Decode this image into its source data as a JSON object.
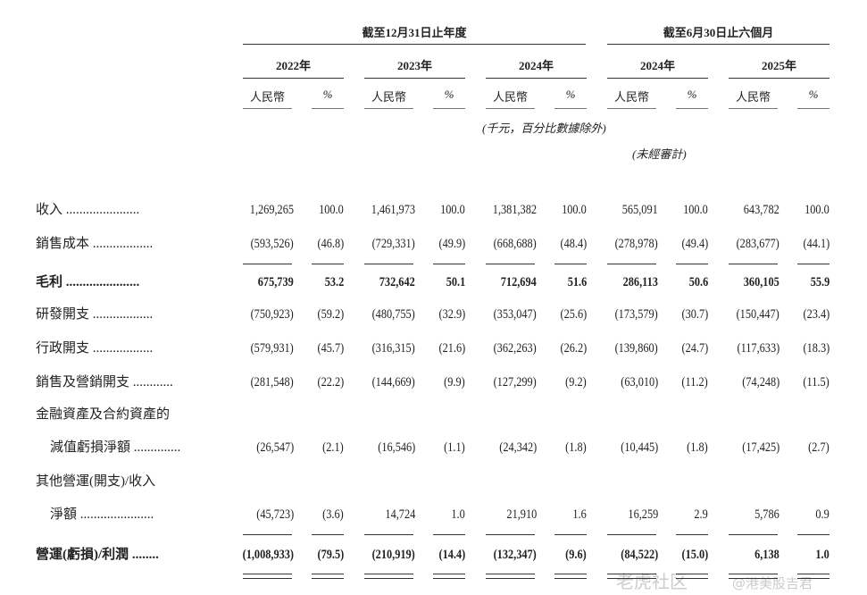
{
  "header": {
    "group_full_year": "截至12月31日止年度",
    "group_six_months": "截至6月30日止六個月",
    "years": [
      "2022年",
      "2023年",
      "2024年",
      "2024年",
      "2025年"
    ],
    "currency_label": "人民幣",
    "percent_label": "%",
    "unit_note": "(千元，百分比數據除外)",
    "unaudited_note": "(未經審計)"
  },
  "rows": [
    {
      "label": "收入",
      "values": [
        "1,269,265",
        "100.0",
        "1,461,973",
        "100.0",
        "1,381,382",
        "100.0",
        "565,091",
        "100.0",
        "643,782",
        "100.0"
      ]
    },
    {
      "label": "銷售成本",
      "values": [
        "(593,526)",
        "(46.8)",
        "(729,331)",
        "(49.9)",
        "(668,688)",
        "(48.4)",
        "(278,978)",
        "(49.4)",
        "(283,677)",
        "(44.1)"
      ],
      "underline": "single"
    },
    {
      "label": "毛利",
      "bold": true,
      "values": [
        "675,739",
        "53.2",
        "732,642",
        "50.1",
        "712,694",
        "51.6",
        "286,113",
        "50.6",
        "360,105",
        "55.9"
      ]
    },
    {
      "label": "研發開支",
      "values": [
        "(750,923)",
        "(59.2)",
        "(480,755)",
        "(32.9)",
        "(353,047)",
        "(25.6)",
        "(173,579)",
        "(30.7)",
        "(150,447)",
        "(23.4)"
      ]
    },
    {
      "label": "行政開支",
      "values": [
        "(579,931)",
        "(45.7)",
        "(316,315)",
        "(21.6)",
        "(362,263)",
        "(26.2)",
        "(139,860)",
        "(24.7)",
        "(117,633)",
        "(18.3)"
      ]
    },
    {
      "label": "銷售及營銷開支",
      "values": [
        "(281,548)",
        "(22.2)",
        "(144,669)",
        "(9.9)",
        "(127,299)",
        "(9.2)",
        "(63,010)",
        "(11.2)",
        "(74,248)",
        "(11.5)"
      ]
    },
    {
      "label": "金融資產及合約資產的",
      "values": []
    },
    {
      "label": "減值虧損淨額",
      "indent": true,
      "values": [
        "(26,547)",
        "(2.1)",
        "(16,546)",
        "(1.1)",
        "(24,342)",
        "(1.8)",
        "(10,445)",
        "(1.8)",
        "(17,425)",
        "(2.7)"
      ]
    },
    {
      "label": "其他營運(開支)/收入",
      "values": []
    },
    {
      "label": "淨額",
      "indent": true,
      "values": [
        "(45,723)",
        "(3.6)",
        "14,724",
        "1.0",
        "21,910",
        "1.6",
        "16,259",
        "2.9",
        "5,786",
        "0.9"
      ],
      "underline": "single"
    },
    {
      "label": "營運(虧損)/利潤",
      "bold": true,
      "values": [
        "(1,008,933)",
        "(79.5)",
        "(210,919)",
        "(14.4)",
        "(132,347)",
        "(9.6)",
        "(84,522)",
        "(15.0)",
        "6,138",
        "1.0"
      ],
      "underline": "double"
    }
  ],
  "watermark": {
    "logo": "老虎社区",
    "handle": "@港美股吉君"
  }
}
